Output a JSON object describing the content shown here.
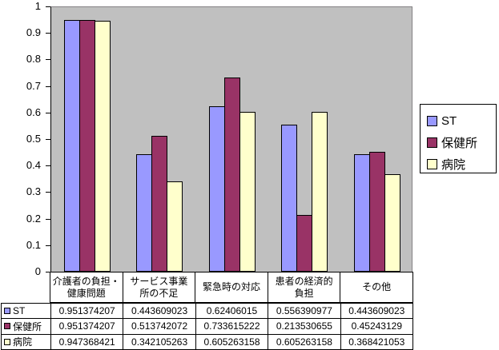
{
  "chart_data": {
    "type": "bar",
    "title": "",
    "xlabel": "",
    "ylabel": "",
    "ylim": [
      0,
      1
    ],
    "y_tick_step": 0.1,
    "y_ticks": [
      "1",
      "0.9",
      "0.8",
      "0.7",
      "0.6",
      "0.5",
      "0.4",
      "0.3",
      "0.2",
      "0.1",
      "0"
    ],
    "gridlines": "off",
    "legend_position": "right",
    "data_table": "on",
    "plot_bg_color": "#C0C0C0",
    "plot_border_color": "#848284",
    "axis_color": "#000000",
    "categories": [
      "介護者の負担・健康問題",
      "サービス事業所の不足",
      "緊急時の対応",
      "患者の経済的負担",
      "その他"
    ],
    "category_lines": [
      [
        "介護者の負担・",
        "健康問題"
      ],
      [
        "サービス事業",
        "所の不足"
      ],
      [
        "緊急時の対応"
      ],
      [
        "患者の経済的",
        "負担"
      ],
      [
        "その他"
      ]
    ],
    "series": [
      {
        "name": "ST",
        "color": "#9999FF",
        "values": [
          0.951374207,
          0.443609023,
          0.62406015,
          0.556390977,
          0.443609023
        ]
      },
      {
        "name": "保健所",
        "color": "#993366",
        "values": [
          0.951374207,
          0.513742072,
          0.733615222,
          0.213530655,
          0.45243129
        ]
      },
      {
        "name": "病院",
        "color": "#FFFFCC",
        "values": [
          0.947368421,
          0.342105263,
          0.605263158,
          0.605263158,
          0.368421053
        ]
      }
    ],
    "legend": {
      "items": [
        "ST",
        "保健所",
        "病院"
      ]
    }
  }
}
